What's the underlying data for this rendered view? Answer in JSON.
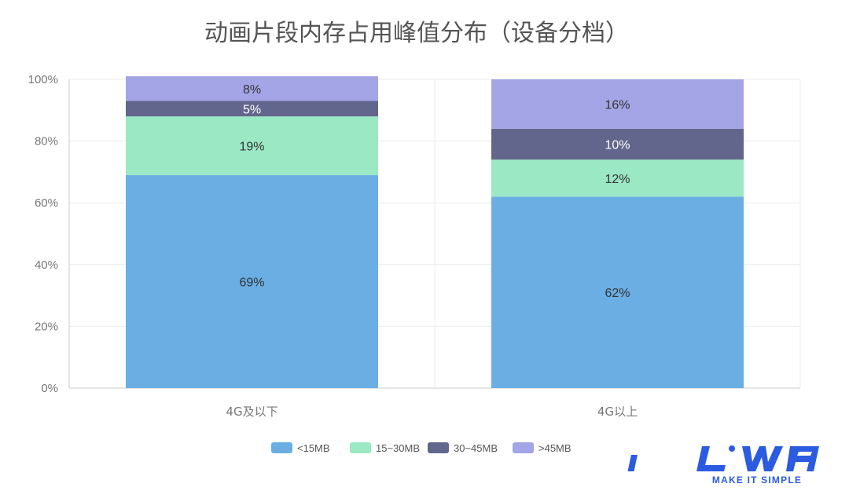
{
  "chart_data": {
    "type": "bar",
    "stacked": true,
    "title": "动画片段内存占用峰值分布（设备分档）",
    "categories": [
      "4G及以下",
      "4G以上"
    ],
    "series": [
      {
        "name": "<15MB",
        "color": "#6aaee3",
        "values": [
          69,
          62
        ],
        "labels": [
          "69%",
          "62%"
        ]
      },
      {
        "name": "15~30MB",
        "color": "#9be8c4",
        "values": [
          19,
          12
        ],
        "labels": [
          "19%",
          "12%"
        ]
      },
      {
        "name": "30~45MB",
        "color": "#62668c",
        "values": [
          5,
          10
        ],
        "labels": [
          "5%",
          "10%"
        ]
      },
      {
        "name": ">45MB",
        "color": "#a3a5e6",
        "values": [
          8,
          16
        ],
        "labels": [
          "8%",
          "16%"
        ]
      }
    ],
    "ylim": [
      0,
      100
    ],
    "yticks": [
      0,
      20,
      40,
      60,
      80,
      100
    ],
    "ytick_labels": [
      "0%",
      "20%",
      "40%",
      "60%",
      "80%",
      "100%"
    ],
    "grid": true,
    "legend_position": "bottom"
  },
  "logo": {
    "name": "LiWA",
    "tagline": "MAKE IT SIMPLE",
    "color": "#2b5be0"
  }
}
